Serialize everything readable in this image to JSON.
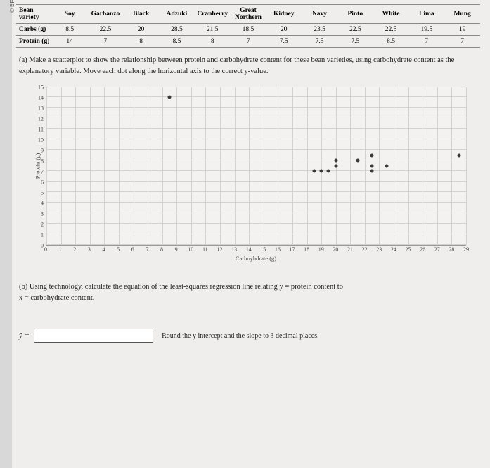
{
  "publisher_label": "© BFW Publishers",
  "table": {
    "row_header_label": "Bean variety",
    "varieties": [
      "Soy",
      "Garbanzo",
      "Black",
      "Adzuki",
      "Cranberry",
      "Great Northern",
      "Kidney",
      "Navy",
      "Pinto",
      "White",
      "Lima",
      "Mung"
    ],
    "rows": [
      {
        "label": "Carbs (g)",
        "values": [
          8.5,
          22.5,
          20,
          28.5,
          21.5,
          18.5,
          20,
          23.5,
          22.5,
          22.5,
          19.5,
          19
        ]
      },
      {
        "label": "Protein (g)",
        "values": [
          14,
          7,
          8,
          8.5,
          8,
          7,
          7.5,
          7.5,
          7.5,
          8.5,
          7,
          7
        ]
      }
    ]
  },
  "part_a": "(a) Make a scatterplot to show the relationship between protein and carbohydrate content for these bean varieties, using carbohydrate content as the explanatory variable. Move each dot along the horizontal axis to the correct y-value.",
  "chart": {
    "type": "scatter",
    "xlabel": "Carboyhdrate (g)",
    "ylabel": "Protein (g)",
    "xlim": [
      0,
      29
    ],
    "ylim": [
      0,
      15
    ],
    "xtick_step": 1,
    "ytick_step": 1,
    "grid_color": "#d4d2d0",
    "background_color": "#f4f2f1",
    "point_color": "#3a3a3a",
    "point_radius": 2.5,
    "points": [
      {
        "x": 8.5,
        "y": 14
      },
      {
        "x": 18.5,
        "y": 7
      },
      {
        "x": 19,
        "y": 7
      },
      {
        "x": 19.5,
        "y": 7
      },
      {
        "x": 20,
        "y": 7.5
      },
      {
        "x": 20,
        "y": 8
      },
      {
        "x": 21.5,
        "y": 8
      },
      {
        "x": 22.5,
        "y": 7.5
      },
      {
        "x": 22.5,
        "y": 8.5
      },
      {
        "x": 22.5,
        "y": 7
      },
      {
        "x": 23.5,
        "y": 7.5
      },
      {
        "x": 28.5,
        "y": 8.5
      }
    ]
  },
  "part_b_line1": "(b) Using technology, calculate the equation of the least-squares regression line relating y = protein content to",
  "part_b_line2": "x = carbohydrate content.",
  "equation": {
    "lhs": "ŷ =",
    "input_value": "",
    "note": "Round the y intercept and the slope to 3 decimal places."
  }
}
